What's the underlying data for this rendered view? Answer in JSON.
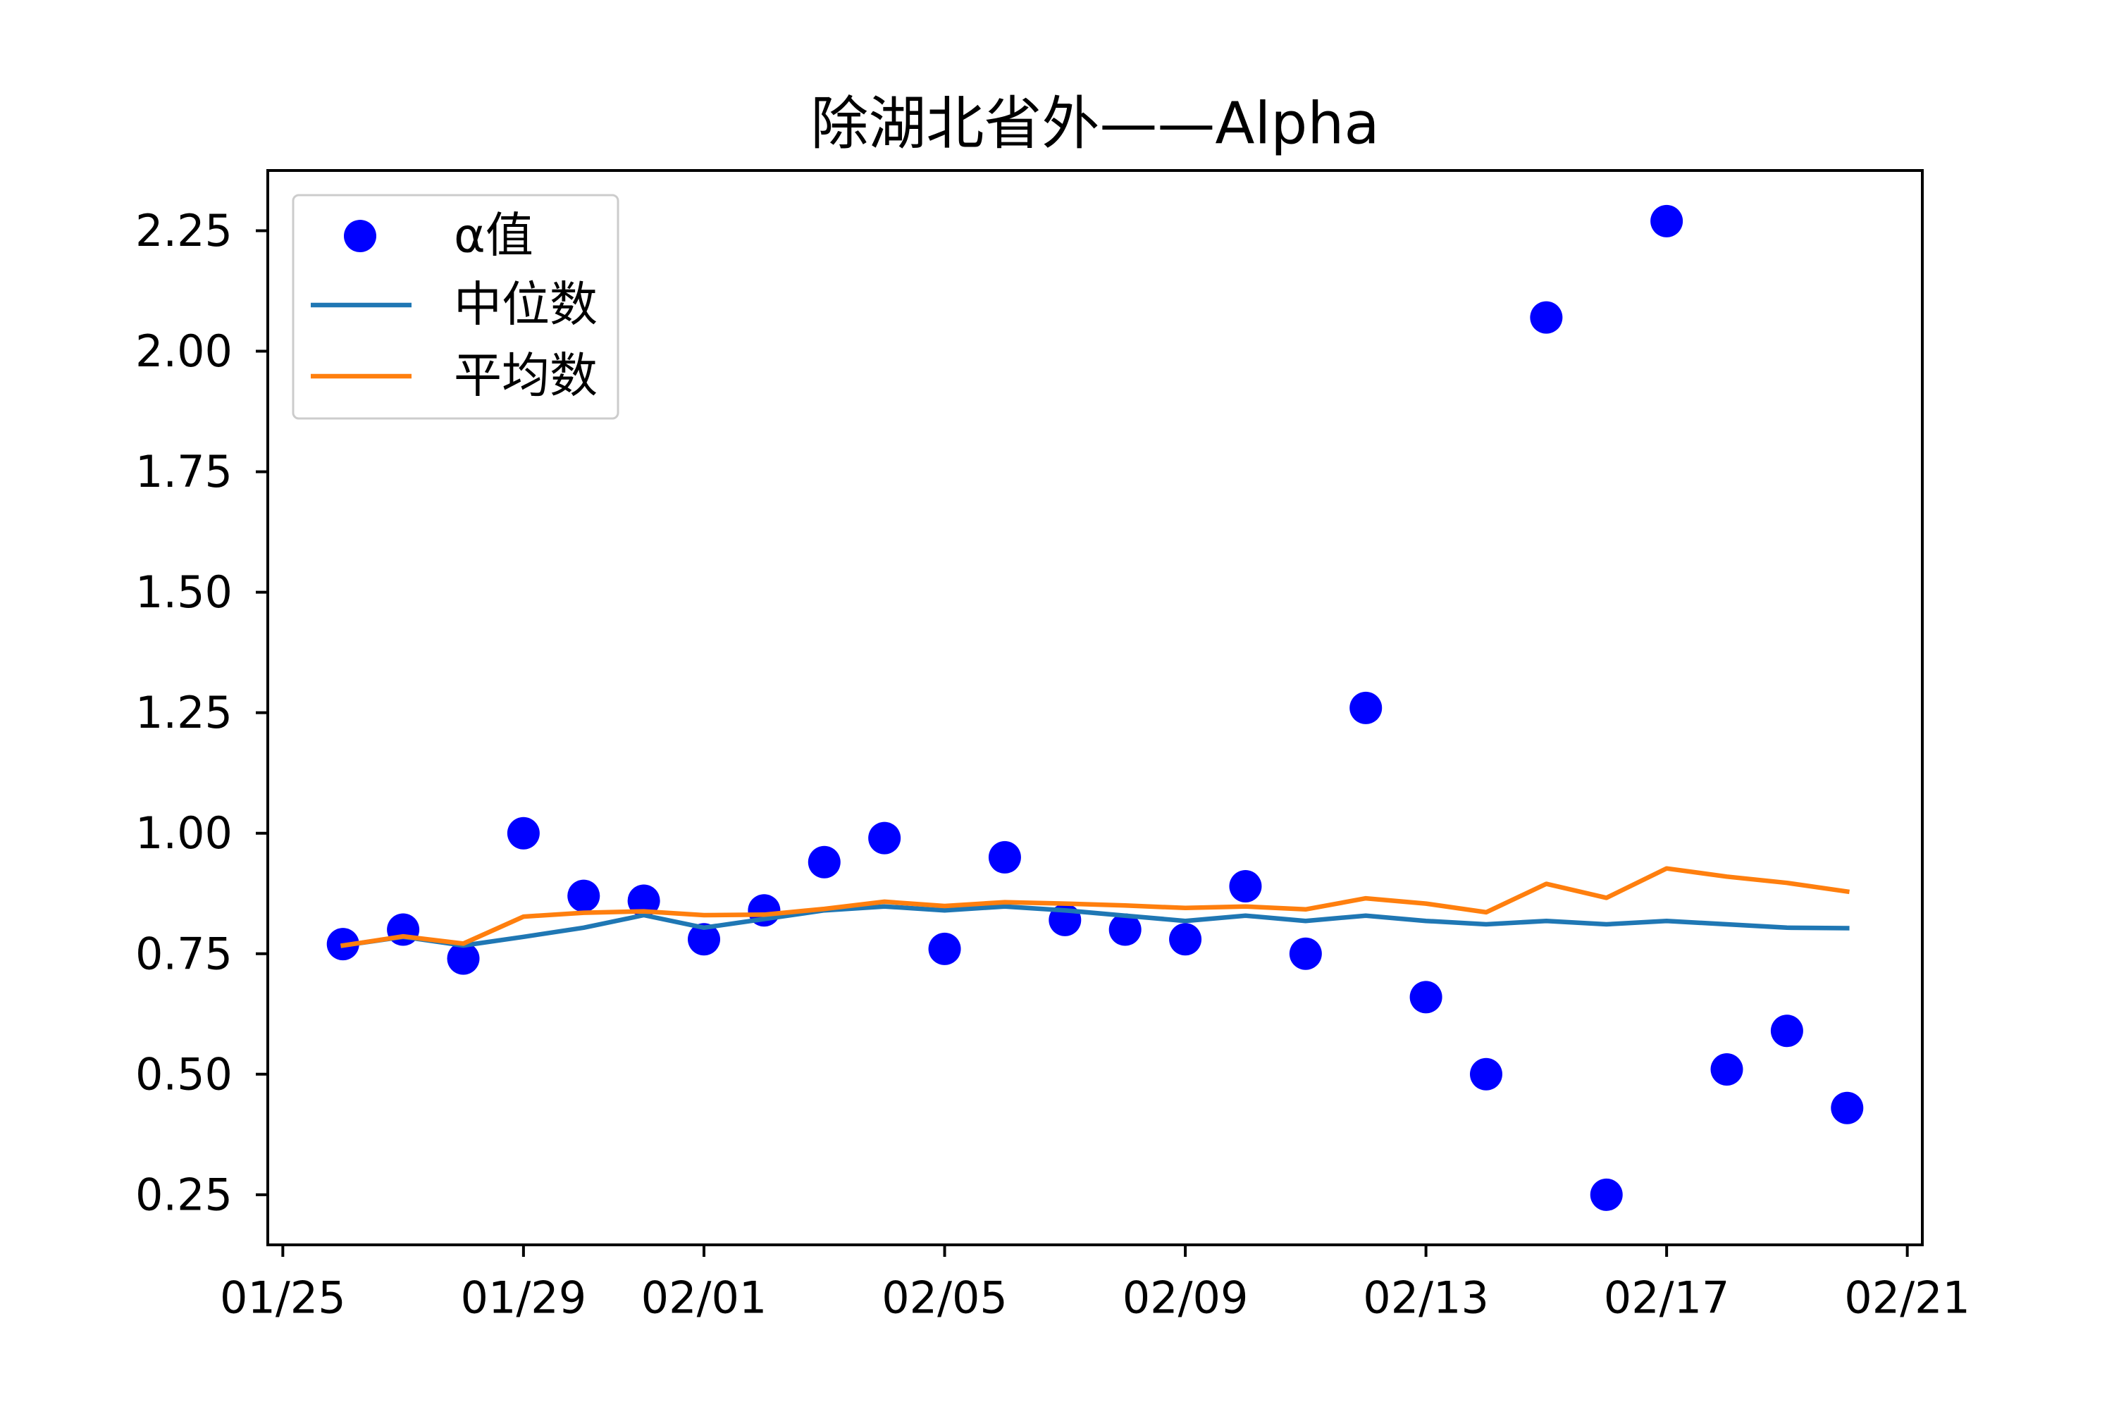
{
  "chart_data": {
    "type": "scatter",
    "title": "除湖北省外——Alpha",
    "x": [
      "01/26",
      "01/27",
      "01/28",
      "01/29",
      "01/30",
      "01/31",
      "02/01",
      "02/02",
      "02/03",
      "02/04",
      "02/05",
      "02/06",
      "02/07",
      "02/08",
      "02/09",
      "02/10",
      "02/11",
      "02/12",
      "02/13",
      "02/14",
      "02/15",
      "02/16",
      "02/17",
      "02/18",
      "02/19",
      "02/20"
    ],
    "series": [
      {
        "name": "α值",
        "kind": "scatter",
        "color": "#0000ff",
        "values": [
          0.77,
          0.8,
          0.74,
          1.0,
          0.87,
          0.86,
          0.78,
          0.84,
          0.94,
          0.99,
          0.76,
          0.95,
          0.82,
          0.8,
          0.78,
          0.89,
          0.75,
          1.26,
          0.66,
          0.5,
          2.07,
          0.25,
          2.27,
          0.51,
          0.59,
          0.43
        ]
      },
      {
        "name": "中位数",
        "kind": "line",
        "color": "#1f77b4",
        "values": [
          0.767,
          0.785,
          0.767,
          0.785,
          0.804,
          0.83,
          0.804,
          0.822,
          0.84,
          0.848,
          0.84,
          0.848,
          0.84,
          0.829,
          0.818,
          0.829,
          0.818,
          0.829,
          0.818,
          0.811,
          0.818,
          0.811,
          0.818,
          0.811,
          0.804,
          0.803
        ]
      },
      {
        "name": "平均数",
        "kind": "line",
        "color": "#ff7f0e",
        "values": [
          0.767,
          0.786,
          0.771,
          0.827,
          0.835,
          0.838,
          0.83,
          0.831,
          0.843,
          0.858,
          0.849,
          0.857,
          0.854,
          0.85,
          0.845,
          0.848,
          0.842,
          0.865,
          0.854,
          0.836,
          0.895,
          0.866,
          0.927,
          0.91,
          0.897,
          0.879
        ]
      }
    ],
    "x_ticks": [
      "01/25",
      "01/29",
      "02/01",
      "02/05",
      "02/09",
      "02/13",
      "02/17",
      "02/21"
    ],
    "y_ticks": [
      "0.25",
      "0.50",
      "0.75",
      "1.00",
      "1.25",
      "1.50",
      "1.75",
      "2.00",
      "2.25"
    ],
    "xlim": [
      "01/24 18:00",
      "02/21 06:00"
    ],
    "ylim": [
      0.146,
      2.375
    ],
    "grid": false,
    "legend": "upper-left"
  }
}
